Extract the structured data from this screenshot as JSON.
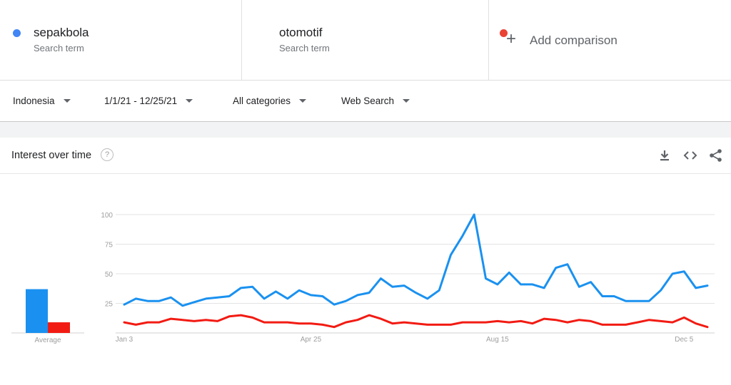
{
  "terms": [
    {
      "name": "sepakbola",
      "subtitle": "Search term",
      "color": "#4285f4"
    },
    {
      "name": "otomotif",
      "subtitle": "Search term",
      "color": "#ea4335"
    }
  ],
  "add_comparison": {
    "label": "Add comparison",
    "icon": "plus-icon"
  },
  "filters": {
    "region": "Indonesia",
    "date_range": "1/1/21 - 12/25/21",
    "category": "All categories",
    "search_type": "Web Search"
  },
  "card": {
    "title": "Interest over time",
    "help_glyph": "?",
    "actions": [
      "download-icon",
      "embed-icon",
      "share-icon"
    ]
  },
  "chart_data": {
    "type": "line",
    "ylim": [
      0,
      100
    ],
    "y_ticks": [
      25,
      50,
      75,
      100
    ],
    "x_tick_labels": [
      {
        "label": "Jan 3",
        "index": 0
      },
      {
        "label": "Apr 25",
        "index": 16
      },
      {
        "label": "Aug 15",
        "index": 32
      },
      {
        "label": "Dec 5",
        "index": 48
      }
    ],
    "series": [
      {
        "name": "sepakbola",
        "color": "#1a91f0",
        "values": [
          24,
          29,
          27,
          27,
          30,
          23,
          26,
          29,
          30,
          31,
          38,
          39,
          29,
          35,
          29,
          36,
          32,
          31,
          24,
          27,
          32,
          34,
          46,
          39,
          40,
          34,
          29,
          36,
          66,
          82,
          100,
          46,
          41,
          51,
          41,
          41,
          38,
          55,
          58,
          39,
          43,
          31,
          31,
          27,
          27,
          27,
          36,
          50,
          52,
          38,
          40
        ]
      },
      {
        "name": "otomotif",
        "color": "#f21b13",
        "values": [
          9,
          7,
          9,
          9,
          12,
          11,
          10,
          11,
          10,
          14,
          15,
          13,
          9,
          9,
          9,
          8,
          8,
          7,
          5,
          9,
          11,
          15,
          12,
          8,
          9,
          8,
          7,
          7,
          7,
          9,
          9,
          9,
          10,
          9,
          10,
          8,
          12,
          11,
          9,
          11,
          10,
          7,
          7,
          7,
          9,
          11,
          10,
          9,
          13,
          8,
          5
        ]
      }
    ],
    "average": {
      "label": "Average",
      "values": [
        {
          "name": "sepakbola",
          "value": 37,
          "color": "#1a91f0"
        },
        {
          "name": "otomotif",
          "value": 9,
          "color": "#f21b13"
        }
      ]
    },
    "grid": true
  }
}
